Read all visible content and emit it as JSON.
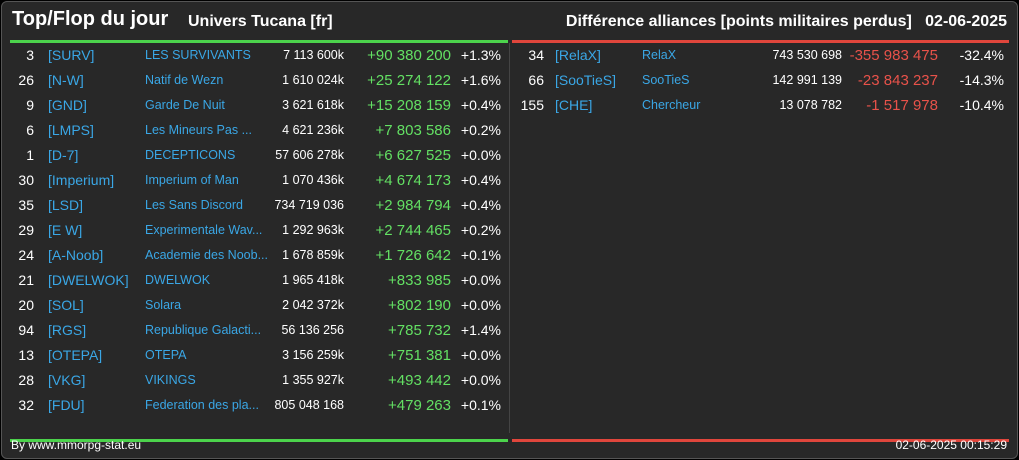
{
  "header": {
    "title": "Top/Flop du jour",
    "universe": "Univers Tucana [fr]",
    "metric": "Différence alliances [points militaires perdus]",
    "date": "02-06-2025"
  },
  "top": [
    {
      "rank": "3",
      "tag": "[SURV]",
      "name": "LES SURVIVANTS",
      "points": "7 113 600k",
      "diff": "+90 380 200",
      "pct": "+1.3%"
    },
    {
      "rank": "26",
      "tag": "[N-W]",
      "name": "Natif de Wezn",
      "points": "1 610 024k",
      "diff": "+25 274 122",
      "pct": "+1.6%"
    },
    {
      "rank": "9",
      "tag": "[GND]",
      "name": "Garde De Nuit",
      "points": "3 621 618k",
      "diff": "+15 208 159",
      "pct": "+0.4%"
    },
    {
      "rank": "6",
      "tag": "[LMPS]",
      "name": "Les Mineurs Pas ...",
      "points": "4 621 236k",
      "diff": "+7 803 586",
      "pct": "+0.2%"
    },
    {
      "rank": "1",
      "tag": "[D-7]",
      "name": "DECEPTICONS",
      "points": "57 606 278k",
      "diff": "+6 627 525",
      "pct": "+0.0%"
    },
    {
      "rank": "30",
      "tag": "[Imperium]",
      "name": "Imperium of Man",
      "points": "1 070 436k",
      "diff": "+4 674 173",
      "pct": "+0.4%"
    },
    {
      "rank": "35",
      "tag": "[LSD]",
      "name": "Les Sans Discord",
      "points": "734 719 036",
      "diff": "+2 984 794",
      "pct": "+0.4%"
    },
    {
      "rank": "29",
      "tag": "[E W]",
      "name": "Experimentale Wav...",
      "points": "1 292 963k",
      "diff": "+2 744 465",
      "pct": "+0.2%"
    },
    {
      "rank": "24",
      "tag": "[A-Noob]",
      "name": "Academie des Noob...",
      "points": "1 678 859k",
      "diff": "+1 726 642",
      "pct": "+0.1%"
    },
    {
      "rank": "21",
      "tag": "[DWELWOK]",
      "name": "DWELWOK",
      "points": "1 965 418k",
      "diff": "+833 985",
      "pct": "+0.0%"
    },
    {
      "rank": "20",
      "tag": "[SOL]",
      "name": "Solara",
      "points": "2 042 372k",
      "diff": "+802 190",
      "pct": "+0.0%"
    },
    {
      "rank": "94",
      "tag": "[RGS]",
      "name": "Republique Galacti...",
      "points": "56 136 256",
      "diff": "+785 732",
      "pct": "+1.4%"
    },
    {
      "rank": "13",
      "tag": "[OTEPA]",
      "name": "OTEPA",
      "points": "3 156 259k",
      "diff": "+751 381",
      "pct": "+0.0%"
    },
    {
      "rank": "28",
      "tag": "[VKG]",
      "name": "VIKINGS",
      "points": "1 355 927k",
      "diff": "+493 442",
      "pct": "+0.0%"
    },
    {
      "rank": "32",
      "tag": "[FDU]",
      "name": "Federation des pla...",
      "points": "805 048 168",
      "diff": "+479 263",
      "pct": "+0.1%"
    }
  ],
  "flop": [
    {
      "rank": "34",
      "tag": "[RelaX]",
      "name": "RelaX",
      "points": "743 530 698",
      "diff": "-355 983 475",
      "pct": "-32.4%"
    },
    {
      "rank": "66",
      "tag": "[SooTieS]",
      "name": "SooTieS",
      "points": "142 991 139",
      "diff": "-23 843 237",
      "pct": "-14.3%"
    },
    {
      "rank": "155",
      "tag": "[CHE]",
      "name": "Chercheur",
      "points": "13 078 782",
      "diff": "-1 517 978",
      "pct": "-10.4%"
    }
  ],
  "footer": {
    "credit": "By www.mmorpg-stat.eu",
    "timestamp": "02-06-2025 00:15:29"
  },
  "colors": {
    "background": "#282828",
    "positive": "#63e063",
    "negative": "#e8524a",
    "link": "#3aa7e6",
    "top_rule": "#4cd34c",
    "flop_rule": "#e0463c"
  }
}
